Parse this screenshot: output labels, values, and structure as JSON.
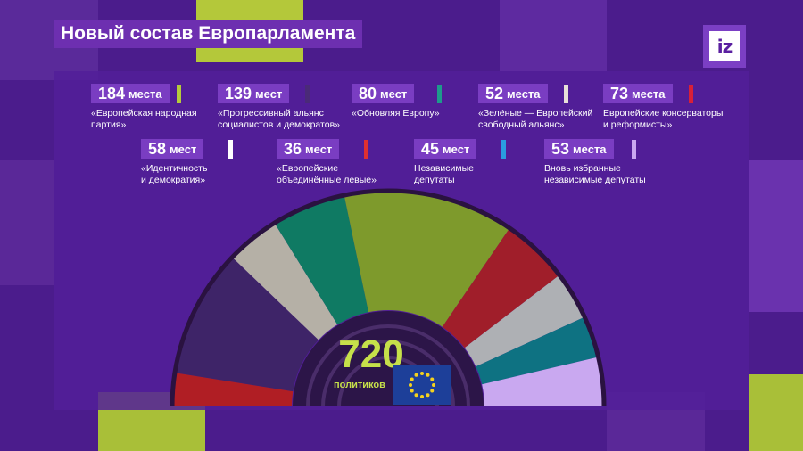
{
  "title": "Новый состав Европарламента",
  "logo": "iz",
  "colors": {
    "background": "#4b1c8c",
    "accent": "#c6e04a"
  },
  "legend": [
    {
      "num": "184",
      "word": "места",
      "desc": "«Европейская народная\nпартия»",
      "color": "#b5cc3c"
    },
    {
      "num": "139",
      "word": "мест",
      "desc": "«Прогрессивный альянс\nсоциалистов и демократов»",
      "color": "#4a2a78"
    },
    {
      "num": "80",
      "word": "мест",
      "desc": "«Обновляя Европу»",
      "color": "#1e9a8c"
    },
    {
      "num": "52",
      "word": "места",
      "desc": "«Зелёные — Европейский\nсвободный альянс»",
      "color": "#e8e0d8"
    },
    {
      "num": "73",
      "word": "места",
      "desc": "Европейские консерваторы\nи реформисты»",
      "color": "#d82038"
    },
    {
      "num": "58",
      "word": "мест",
      "desc": "«Идентичность\nи демократия»",
      "color": "#ffffff"
    },
    {
      "num": "36",
      "word": "мест",
      "desc": "«Европейские\nобъединённые левые»",
      "color": "#e03030"
    },
    {
      "num": "45",
      "word": "мест",
      "desc": "Независимые\nдепутаты",
      "color": "#2a9de0"
    },
    {
      "num": "53",
      "word": "места",
      "desc": "Вновь избранные\nнезависимые депутаты",
      "color": "#c9a8f0"
    }
  ],
  "chart_data": {
    "type": "pie",
    "subtype": "parliament-semicircle",
    "total": 720,
    "total_label": "политиков",
    "segments": [
      {
        "value": 36,
        "color": "#b01e24"
      },
      {
        "value": 139,
        "color": "#3e2468"
      },
      {
        "value": 58,
        "color": "#b5b0a6"
      },
      {
        "value": 80,
        "color": "#0f7a63"
      },
      {
        "value": 184,
        "color": "#7e9a2c"
      },
      {
        "value": 73,
        "color": "#a01e2a"
      },
      {
        "value": 52,
        "color": "#aeb0b4"
      },
      {
        "value": 45,
        "color": "#0e7282"
      },
      {
        "value": 53,
        "color": "#c9a8f0"
      }
    ]
  }
}
